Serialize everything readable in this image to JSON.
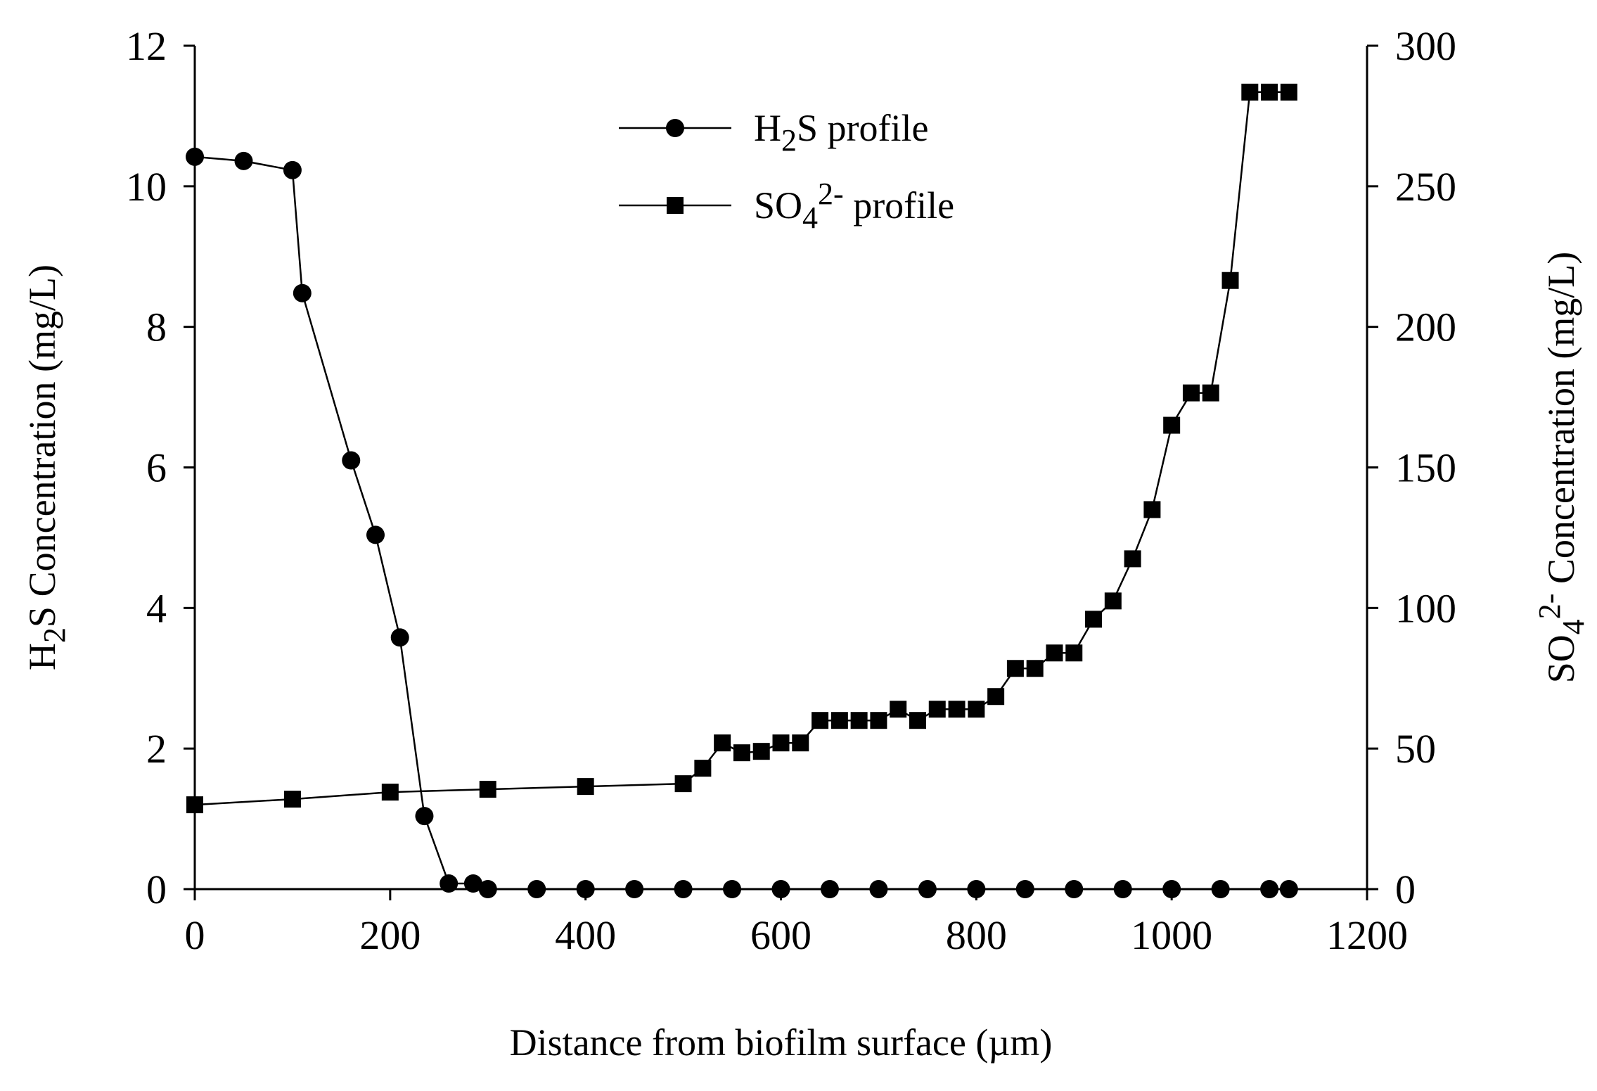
{
  "chart_data": {
    "type": "line",
    "title": "",
    "xlabel": "Distance from biofilm surface (µm)",
    "xlim": [
      0,
      1200
    ],
    "x_ticks": [
      "0",
      "200",
      "400",
      "600",
      "800",
      "1000",
      "1200"
    ],
    "y_left": {
      "label_parts": [
        "H",
        "2",
        "S Concentration (mg/L)"
      ],
      "lim": [
        0,
        12
      ],
      "ticks": [
        "0",
        "2",
        "4",
        "6",
        "8",
        "10",
        "12"
      ]
    },
    "y_right": {
      "label_parts": [
        "SO",
        "4",
        "2-",
        " Concentration (mg/L)"
      ],
      "lim": [
        0,
        300
      ],
      "ticks": [
        "0",
        "50",
        "100",
        "150",
        "200",
        "250",
        "300"
      ]
    },
    "grid": false,
    "legend_position": "top-center",
    "series": [
      {
        "name_parts": [
          "H",
          "2",
          "S profile"
        ],
        "axis": "left",
        "marker": "circle",
        "color": "#000000",
        "x": [
          0,
          50,
          100,
          110,
          160,
          185,
          210,
          235,
          260,
          285,
          300,
          350,
          400,
          450,
          500,
          550,
          600,
          650,
          700,
          750,
          800,
          850,
          900,
          950,
          1000,
          1050,
          1100,
          1120
        ],
        "y": [
          10.42,
          10.36,
          10.23,
          8.48,
          6.1,
          5.04,
          3.58,
          1.04,
          0.08,
          0.08,
          0.0,
          0.0,
          0.0,
          0.0,
          0.0,
          0.0,
          0.0,
          0.0,
          0.0,
          0.0,
          0.0,
          0.0,
          0.0,
          0.0,
          0.0,
          0.0,
          0.0,
          0.0
        ]
      },
      {
        "name_parts": [
          "SO",
          "4",
          "2-",
          " profile"
        ],
        "axis": "right",
        "marker": "square",
        "color": "#000000",
        "x": [
          0,
          100,
          200,
          300,
          400,
          500,
          520,
          540,
          560,
          580,
          600,
          620,
          640,
          660,
          680,
          700,
          720,
          740,
          760,
          780,
          800,
          820,
          840,
          860,
          880,
          900,
          920,
          940,
          960,
          980,
          1000,
          1020,
          1040,
          1060,
          1080,
          1100,
          1120
        ],
        "y": [
          30,
          32,
          34.5,
          35.5,
          36.5,
          37.5,
          43,
          52,
          48.5,
          49,
          52,
          52,
          60,
          60,
          60,
          60,
          64,
          60,
          64,
          64,
          64,
          68.5,
          78.5,
          78.5,
          84,
          84,
          96,
          102.5,
          117.5,
          135,
          165,
          176.5,
          176.5,
          216.5,
          283.5,
          283.5,
          283.5
        ]
      }
    ]
  }
}
